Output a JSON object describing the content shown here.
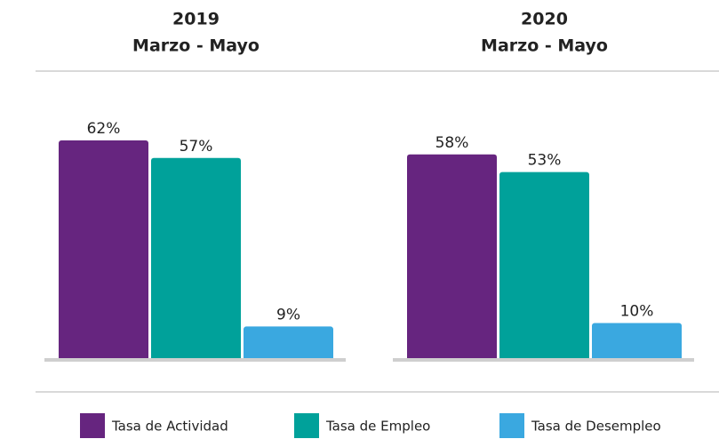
{
  "chart_data": {
    "type": "grouped_bar",
    "categories": [
      "2019",
      "2020"
    ],
    "periods": [
      "Marzo - Mayo",
      "Marzo - Mayo"
    ],
    "series": [
      {
        "name": "Tasa de Actividad",
        "color": "#66257f",
        "values": [
          62,
          58
        ],
        "value_labels": [
          "62%",
          "58%"
        ]
      },
      {
        "name": "Tasa de Empleo",
        "color": "#00a19a",
        "values": [
          57,
          53
        ],
        "value_labels": [
          "57%",
          "53%"
        ]
      },
      {
        "name": "Tasa de Desempleo",
        "color": "#3aa8e0",
        "values": [
          9,
          10
        ],
        "value_labels": [
          "9%",
          "10%"
        ]
      }
    ]
  }
}
